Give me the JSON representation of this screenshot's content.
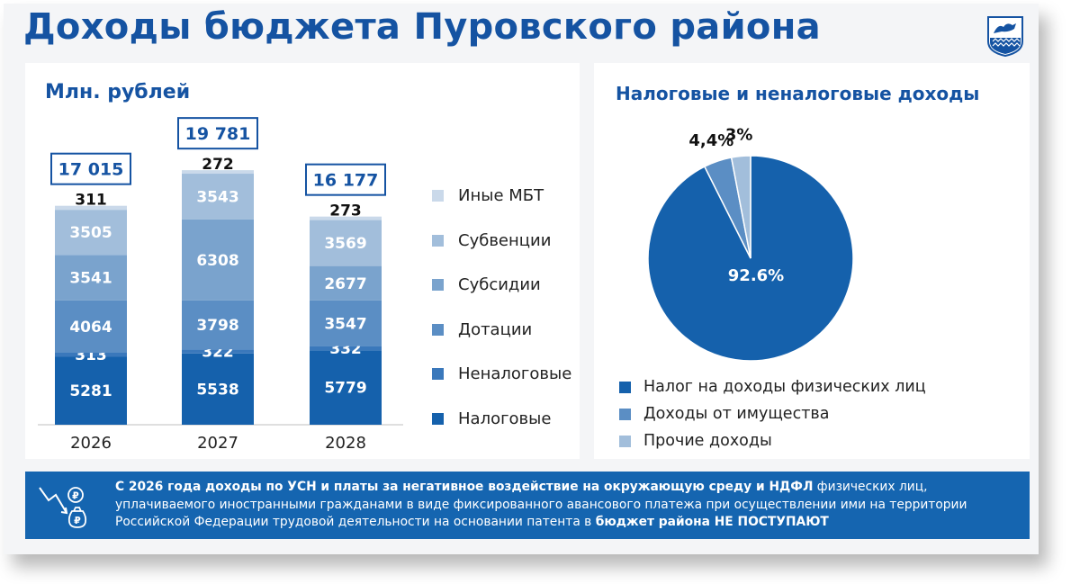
{
  "page_title": "Доходы бюджета Пуровского района",
  "colors": {
    "title": "#1553a2",
    "nalogovye": "#1561ac",
    "nenalogovye": "#3a78bb",
    "dotacii": "#5b8ec4",
    "subsidii": "#7aa3cd",
    "subvencii": "#a2bedb",
    "inye": "#cad9ea",
    "banner": "#1565b0"
  },
  "chart_data": [
    {
      "type": "bar",
      "stacked": true,
      "title": "Млн. рублей",
      "categories": [
        "2026",
        "2027",
        "2028"
      ],
      "totals": [
        "17 015",
        "19 781",
        "16 177"
      ],
      "series": [
        {
          "name": "Налоговые",
          "values": [
            5281,
            5538,
            5779
          ],
          "color": "#1561ac",
          "label_color": "#ffffff"
        },
        {
          "name": "Неналоговые",
          "values": [
            313,
            322,
            332
          ],
          "color": "#3a78bb",
          "label_color": "#ffffff"
        },
        {
          "name": "Дотации",
          "values": [
            4064,
            3798,
            3547
          ],
          "color": "#5b8ec4",
          "label_color": "#ffffff"
        },
        {
          "name": "Субсидии",
          "values": [
            3541,
            6308,
            2677
          ],
          "color": "#7aa3cd",
          "label_color": "#ffffff"
        },
        {
          "name": "Субвенции",
          "values": [
            3505,
            3543,
            3569
          ],
          "color": "#a2bedb",
          "label_color": "#ffffff"
        },
        {
          "name": "Иные МБТ",
          "values": [
            311,
            272,
            273
          ],
          "color": "#cad9ea",
          "label_color": "#111111"
        }
      ],
      "legend_order": [
        "Иные МБТ",
        "Субвенции",
        "Субсидии",
        "Дотации",
        "Неналоговые",
        "Налоговые"
      ],
      "legend_position": "right"
    },
    {
      "type": "pie",
      "title": "Налоговые и неналоговые доходы",
      "slices": [
        {
          "label": "Налог на доходы физических лиц",
          "value": 92.6,
          "display": "92.6%",
          "color": "#1561ac"
        },
        {
          "label": "Доходы от имущества",
          "value": 4.4,
          "display": "4,4%",
          "color": "#5b8ec4"
        },
        {
          "label": "Прочие доходы",
          "value": 3,
          "display": "3%",
          "color": "#a2bedb"
        }
      ],
      "legend_position": "bottom"
    }
  ],
  "banner": {
    "bold1": "С 2026 года доходы по УСН и платы за негативное воздействие на окружающую среду и НДФЛ",
    "text1": " физических лиц, уплачиваемого иностранными гражданами в виде фиксированного авансового платежа при осуществлении ими на территории Российской Федерации трудовой деятельности на основании патента в ",
    "bold2": "бюджет района НЕ ПОСТУПАЮТ"
  }
}
